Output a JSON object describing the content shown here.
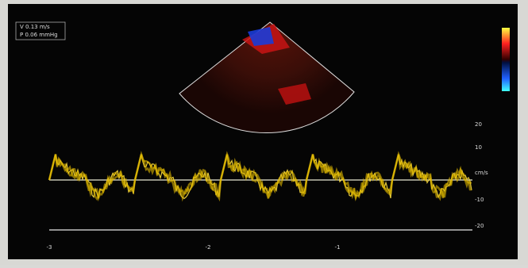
{
  "measure": {
    "velocity": "V  0.13 m/s",
    "pressure": "P  0.06 mmHg"
  },
  "scale": {
    "top": "20",
    "upper": "10",
    "baseline": "cm/s",
    "lower": "-10",
    "bottom": "-20"
  },
  "time_axis": {
    "left": "-3",
    "middle": "-2",
    "right": "-1"
  }
}
